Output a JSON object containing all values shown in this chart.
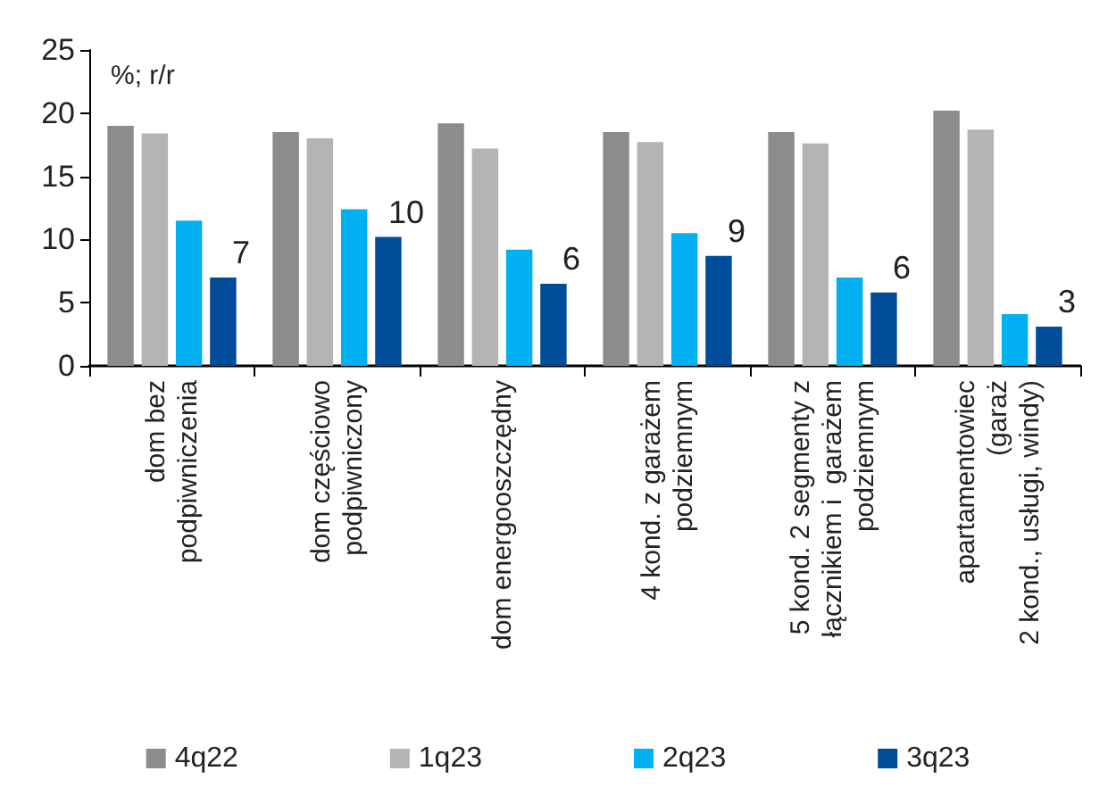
{
  "chart_data": {
    "type": "bar",
    "ylabel": "%; r/r",
    "categories": [
      "dom bez\npodpiwniczenia",
      "dom częściowo\npodpiwniczony",
      "dom energooszczędny",
      "4 kond. z garażem\npodziemnym",
      "5 kond. 2 segmenty z\nłącznikiem i  garażem\npodziemnym",
      "apartamentowiec\n(garaż\n2 kond., usługi, windy)"
    ],
    "series": [
      {
        "name": "4q22",
        "color": "#8c8c8c",
        "values": [
          19.0,
          18.5,
          19.2,
          18.5,
          18.5,
          20.2
        ]
      },
      {
        "name": "1q23",
        "color": "#b4b4b4",
        "values": [
          18.4,
          18.0,
          17.2,
          17.7,
          17.6,
          18.7
        ]
      },
      {
        "name": "2q23",
        "color": "#00b0f0",
        "values": [
          11.5,
          12.4,
          9.2,
          10.5,
          7.0,
          4.1
        ]
      },
      {
        "name": "3q23",
        "color": "#004c99",
        "values": [
          7.0,
          10.2,
          6.5,
          8.7,
          5.8,
          3.1
        ],
        "value_labels": [
          "7",
          "10",
          "6",
          "9",
          "6",
          "3"
        ]
      }
    ],
    "ylim": [
      0,
      25
    ],
    "yticks": [
      0,
      5,
      10,
      15,
      20,
      25
    ],
    "grid": false,
    "legend": "bottom"
  }
}
